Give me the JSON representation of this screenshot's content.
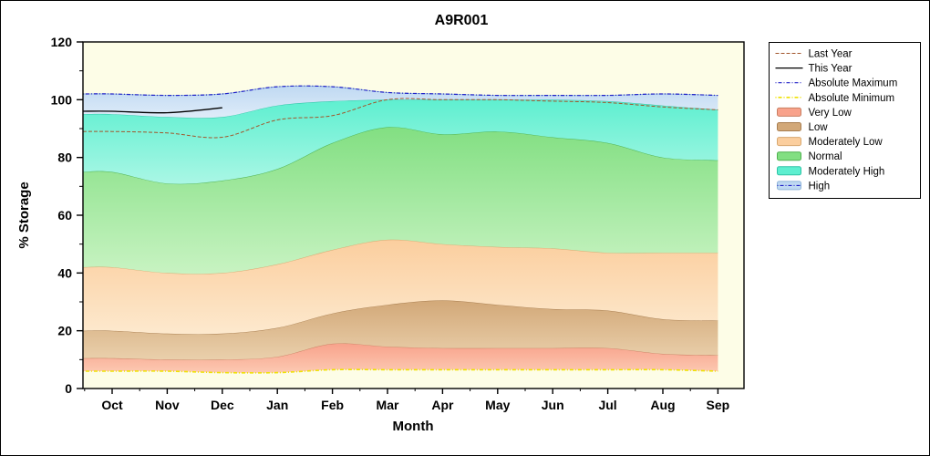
{
  "title": "A9R001",
  "chart_data": {
    "type": "area",
    "title": "A9R001",
    "xlabel": "Month",
    "ylabel": "% Storage",
    "ylim": [
      0,
      120
    ],
    "yticks": [
      0,
      20,
      40,
      60,
      80,
      100,
      120
    ],
    "categories": [
      "Oct",
      "Nov",
      "Dec",
      "Jan",
      "Feb",
      "Mar",
      "Apr",
      "May",
      "Jun",
      "Jul",
      "Aug",
      "Sep"
    ],
    "plot_background": "#FDFDE7",
    "levels": {
      "absolute_minimum": [
        6,
        6,
        5.5,
        5.5,
        6.5,
        6.5,
        6.5,
        6.5,
        6.5,
        6.5,
        6.5,
        6
      ],
      "very_low_top": [
        10.5,
        10,
        10,
        11,
        15.5,
        14.5,
        14,
        14,
        14,
        14,
        12,
        11.5
      ],
      "low_top": [
        20,
        19,
        19,
        21,
        26,
        29,
        30.5,
        29,
        27.5,
        27,
        24,
        23.5
      ],
      "moderately_low_top": [
        42,
        40,
        40,
        43,
        48,
        51.5,
        50,
        49,
        48.5,
        47,
        47,
        47
      ],
      "normal_top": [
        75,
        71,
        72,
        76,
        85,
        90.5,
        88,
        89,
        87,
        85,
        80,
        79
      ],
      "moderately_high_top": [
        95,
        94,
        94,
        98,
        99.5,
        100,
        100,
        100,
        100,
        99.5,
        98,
        96.5
      ],
      "absolute_maximum": [
        102,
        101.5,
        102,
        104.5,
        104.5,
        102.5,
        102,
        101.5,
        101.5,
        101.5,
        102,
        101.5
      ]
    },
    "bands": [
      {
        "name": "Very Low",
        "lower": "absolute_minimum",
        "upper": "very_low_top",
        "fill": "#F8A28B",
        "fill_light": "#FCC9B2",
        "edge": "#C97F62"
      },
      {
        "name": "Low",
        "lower": "very_low_top",
        "upper": "low_top",
        "fill": "#D2A878",
        "fill_light": "#EAD0AC",
        "edge": "#A87E50"
      },
      {
        "name": "Moderately Low",
        "lower": "low_top",
        "upper": "moderately_low_top",
        "fill": "#FBCE9E",
        "fill_light": "#FDE9CE",
        "edge": "#D8A870"
      },
      {
        "name": "Normal",
        "lower": "moderately_low_top",
        "upper": "normal_top",
        "fill": "#82DF82",
        "fill_light": "#C8F3C2",
        "edge": "#4FB14F"
      },
      {
        "name": "Moderately High",
        "lower": "normal_top",
        "upper": "moderately_high_top",
        "fill": "#5EEFD0",
        "fill_light": "#AAF7E5",
        "edge": "#2EC4A5"
      },
      {
        "name": "High",
        "lower": "moderately_high_top",
        "upper": "absolute_maximum",
        "fill": "#BFD9F2",
        "fill_light": "#DFECF9",
        "edge": "#8FB4D8"
      }
    ],
    "lines": [
      {
        "name": "Absolute Maximum",
        "level": "absolute_maximum",
        "color": "#2121C8",
        "dash": "1 2 4 2",
        "width": 1.2
      },
      {
        "name": "Absolute Minimum",
        "level": "absolute_minimum",
        "color": "#EFE202",
        "dash": "1 2 4 2",
        "width": 1.6
      },
      {
        "name": "Last Year",
        "color": "#A2562C",
        "dash": "4 2",
        "width": 1,
        "values": [
          89,
          88.5,
          87,
          93,
          94.5,
          100,
          100,
          100,
          99.5,
          99,
          97.5,
          96.5
        ]
      },
      {
        "name": "This Year",
        "color": "#000000",
        "dash": "",
        "width": 1.3,
        "values": [
          96,
          95.5,
          97.2,
          null,
          null,
          null,
          null,
          null,
          null,
          null,
          null,
          null
        ]
      }
    ]
  },
  "legend": {
    "items": [
      {
        "label": "Last Year",
        "type": "line",
        "color": "#A2562C",
        "dash": "4 2",
        "width": 1
      },
      {
        "label": "This Year",
        "type": "line",
        "color": "#000000",
        "dash": "",
        "width": 1.3
      },
      {
        "label": "Absolute Maximum",
        "type": "line",
        "color": "#2121C8",
        "dash": "1 2 4 2",
        "width": 1.2
      },
      {
        "label": "Absolute Minimum",
        "type": "line",
        "color": "#EFE202",
        "dash": "1 2 4 2",
        "width": 1.6
      },
      {
        "label": "Very Low",
        "type": "fill",
        "color": "#F8A28B",
        "edge": "#C97F62"
      },
      {
        "label": "Low",
        "type": "fill",
        "color": "#D2A878",
        "edge": "#A87E50"
      },
      {
        "label": "Moderately Low",
        "type": "fill",
        "color": "#FBCE9E",
        "edge": "#D8A870"
      },
      {
        "label": "Normal",
        "type": "fill",
        "color": "#82DF82",
        "edge": "#4FB14F"
      },
      {
        "label": "Moderately High",
        "type": "fill",
        "color": "#5EEFD0",
        "edge": "#2EC4A5"
      },
      {
        "label": "High",
        "type": "fill",
        "color": "#BFD9F2",
        "edge": "#8FB4D8",
        "overlay_line": {
          "color": "#2121C8",
          "dash": "1 2 4 2"
        }
      }
    ]
  }
}
